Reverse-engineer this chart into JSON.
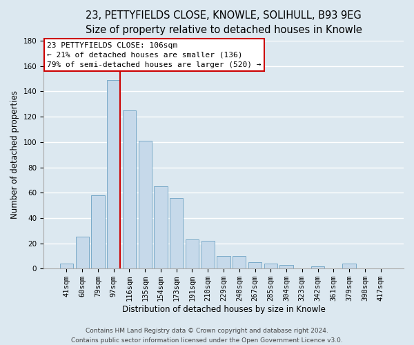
{
  "title": "23, PETTYFIELDS CLOSE, KNOWLE, SOLIHULL, B93 9EG",
  "subtitle": "Size of property relative to detached houses in Knowle",
  "xlabel": "Distribution of detached houses by size in Knowle",
  "ylabel": "Number of detached properties",
  "bar_values": [
    4,
    25,
    58,
    149,
    125,
    101,
    65,
    56,
    23,
    22,
    10,
    10,
    5,
    4,
    3,
    0,
    2,
    0,
    4,
    0,
    0
  ],
  "bar_labels": [
    "41sqm",
    "60sqm",
    "79sqm",
    "97sqm",
    "116sqm",
    "135sqm",
    "154sqm",
    "173sqm",
    "191sqm",
    "210sqm",
    "229sqm",
    "248sqm",
    "267sqm",
    "285sqm",
    "304sqm",
    "323sqm",
    "342sqm",
    "361sqm",
    "379sqm",
    "398sqm",
    "417sqm"
  ],
  "bar_color": "#c6d9ea",
  "bar_edge_color": "#7aaac8",
  "marker_index": 3,
  "marker_color": "#cc0000",
  "ylim": [
    0,
    180
  ],
  "yticks": [
    0,
    20,
    40,
    60,
    80,
    100,
    120,
    140,
    160,
    180
  ],
  "annotation_title": "23 PETTYFIELDS CLOSE: 106sqm",
  "annotation_line1": "← 21% of detached houses are smaller (136)",
  "annotation_line2": "79% of semi-detached houses are larger (520) →",
  "annotation_box_facecolor": "#ffffff",
  "annotation_box_edgecolor": "#cc0000",
  "footer_line1": "Contains HM Land Registry data © Crown copyright and database right 2024.",
  "footer_line2": "Contains public sector information licensed under the Open Government Licence v3.0.",
  "background_color": "#dce8f0",
  "grid_color": "#ffffff",
  "title_fontsize": 10.5,
  "subtitle_fontsize": 9.5,
  "ylabel_fontsize": 8.5,
  "xlabel_fontsize": 8.5,
  "tick_fontsize": 7.5,
  "annotation_fontsize": 8,
  "footer_fontsize": 6.5
}
